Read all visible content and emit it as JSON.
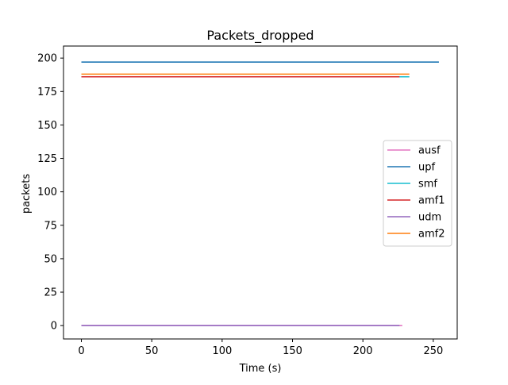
{
  "chart_data": {
    "type": "line",
    "title": "Packets_dropped",
    "xlabel": "Time (s)",
    "ylabel": "packets",
    "xlim": [
      -12.7,
      267
    ],
    "ylim": [
      -10,
      209
    ],
    "xticks": [
      0,
      50,
      100,
      150,
      200,
      250
    ],
    "yticks": [
      0,
      25,
      50,
      75,
      100,
      125,
      150,
      175,
      200
    ],
    "grid": false,
    "legend_position": "center-right",
    "series": [
      {
        "name": "ausf",
        "color": "#e377c2",
        "x": [
          0,
          228
        ],
        "values": [
          0,
          0
        ]
      },
      {
        "name": "upf",
        "color": "#1f77b4",
        "x": [
          0,
          254
        ],
        "values": [
          197,
          197
        ]
      },
      {
        "name": "smf",
        "color": "#17becf",
        "x": [
          0,
          233
        ],
        "values": [
          186,
          186
        ]
      },
      {
        "name": "amf1",
        "color": "#d62728",
        "x": [
          0,
          226
        ],
        "values": [
          186,
          186
        ]
      },
      {
        "name": "udm",
        "color": "#9467bd",
        "x": [
          0,
          226
        ],
        "values": [
          0,
          0
        ]
      },
      {
        "name": "amf2",
        "color": "#ff7f0e",
        "x": [
          0,
          233
        ],
        "values": [
          188,
          188
        ]
      }
    ]
  }
}
